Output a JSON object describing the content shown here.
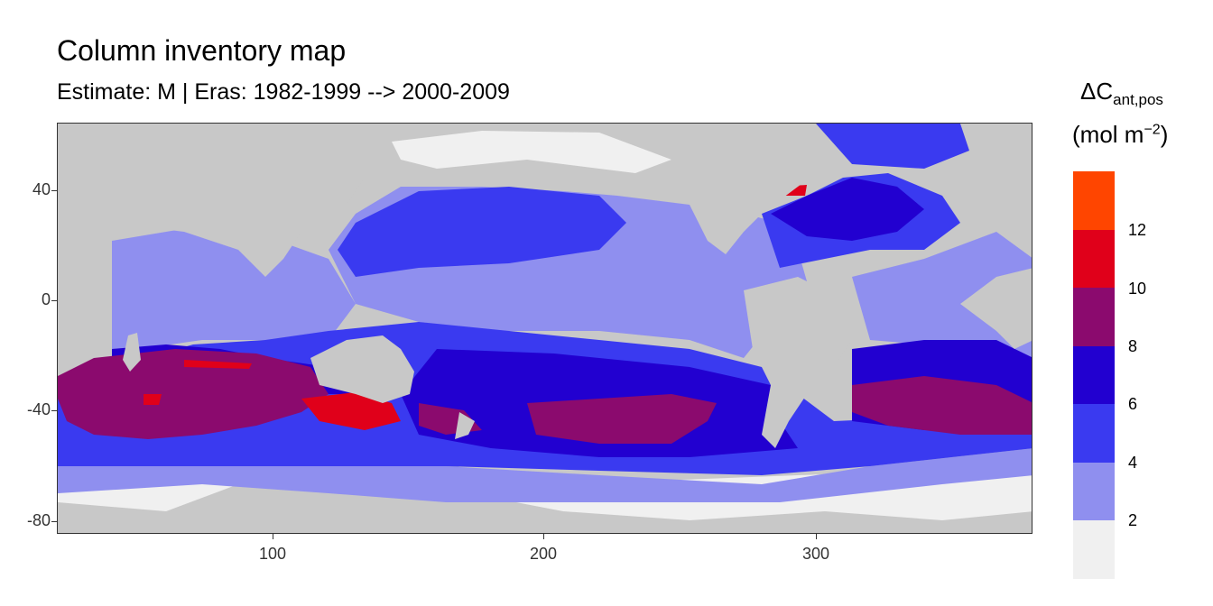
{
  "title": "Column inventory map",
  "subtitle": "Estimate: M  | Eras: 1982-1999 --> 2000-2009",
  "map": {
    "land_color": "#c8c8c8",
    "x_axis": {
      "ticks": [
        "100",
        "200",
        "300"
      ],
      "tick_values": [
        100,
        200,
        300
      ],
      "range": [
        20,
        380
      ]
    },
    "y_axis": {
      "ticks": [
        "40",
        "0",
        "-40",
        "-80"
      ],
      "tick_values": [
        40,
        0,
        -40,
        -80
      ],
      "range": [
        -84,
        65
      ]
    }
  },
  "legend": {
    "title_main": "ΔC",
    "title_sub": "ant,pos",
    "unit_main": "(mol m",
    "unit_sup": "−2",
    "unit_close": ")",
    "colors_top_to_bottom": [
      "#ff4500",
      "#e0001a",
      "#8b0a6e",
      "#2200d0",
      "#3a3af0",
      "#8f8fef",
      "#f0f0f0"
    ],
    "labels": [
      "12",
      "10",
      "8",
      "6",
      "4",
      "2"
    ]
  }
}
